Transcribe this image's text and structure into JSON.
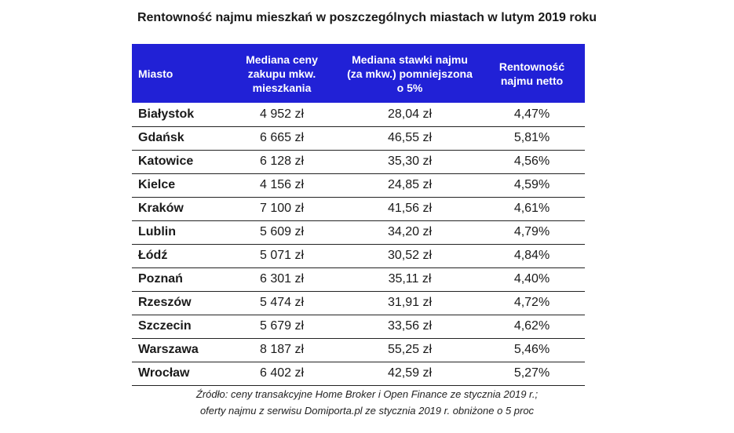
{
  "title": "Rentowność najmu mieszkań w poszczególnych miastach w lutym 2019 roku",
  "table": {
    "headers": [
      "Miasto",
      "Mediana ceny zakupu mkw. mieszkania",
      "Mediana stawki najmu (za mkw.) pomniejszona o 5%",
      "Rentowność najmu netto"
    ],
    "rows": [
      [
        "Białystok",
        "4 952 zł",
        "28,04 zł",
        "4,47%"
      ],
      [
        "Gdańsk",
        "6 665 zł",
        "46,55 zł",
        "5,81%"
      ],
      [
        "Katowice",
        "6 128 zł",
        "35,30 zł",
        "4,56%"
      ],
      [
        "Kielce",
        "4 156 zł",
        "24,85 zł",
        "4,59%"
      ],
      [
        "Kraków",
        "7 100 zł",
        "41,56 zł",
        "4,61%"
      ],
      [
        "Lublin",
        "5 609 zł",
        "34,20 zł",
        "4,79%"
      ],
      [
        "Łódź",
        "5 071 zł",
        "30,52 zł",
        "4,84%"
      ],
      [
        "Poznań",
        "6 301 zł",
        "35,11 zł",
        "4,40%"
      ],
      [
        "Rzeszów",
        "5 474 zł",
        "31,91 zł",
        "4,72%"
      ],
      [
        "Szczecin",
        "5 679 zł",
        "33,56 zł",
        "4,62%"
      ],
      [
        "Warszawa",
        "8 187 zł",
        "55,25 zł",
        "5,46%"
      ],
      [
        "Wrocław",
        "6 402 zł",
        "42,59 zł",
        "5,27%"
      ]
    ]
  },
  "source": {
    "line1": "Źródło: ceny transakcyjne Home Broker i Open Finance ze stycznia 2019 r.;",
    "line2": "oferty najmu z serwisu Domiporta.pl ze stycznia 2019 r. obniżone o 5 proc"
  },
  "colors": {
    "header_bg": "#2121d6",
    "header_text": "#ffffff"
  }
}
